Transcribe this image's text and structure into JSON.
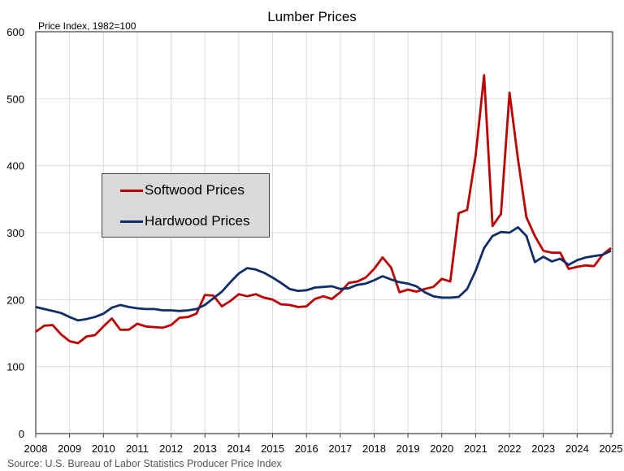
{
  "chart_data": {
    "type": "line",
    "title": "Lumber Prices",
    "ylabel": "Price Index, 1982=100",
    "xlabel": "",
    "source": "Source: U.S. Bureau of Labor Statistics Producer Price Index",
    "ylim": [
      0,
      600
    ],
    "xlim": [
      2008,
      2025
    ],
    "yticks": [
      0,
      100,
      200,
      300,
      400,
      500,
      600
    ],
    "xticks": [
      "2008",
      "2009",
      "2010",
      "2011",
      "2012",
      "2013",
      "2014",
      "2015",
      "2016",
      "2017",
      "2018",
      "2019",
      "2020",
      "2021",
      "2022",
      "2023",
      "2024",
      "2025"
    ],
    "grid": true,
    "legend_position": "upper-left-center",
    "x_start": 2008,
    "x_step": 0.25,
    "series": [
      {
        "name": "Softwood Prices",
        "color": "#c00000",
        "values": [
          152,
          161,
          162,
          148,
          138,
          135,
          145,
          147,
          160,
          172,
          155,
          155,
          164,
          160,
          159,
          158,
          162,
          173,
          174,
          179,
          207,
          206,
          190,
          198,
          208,
          205,
          208,
          203,
          200,
          193,
          192,
          189,
          190,
          201,
          205,
          201,
          211,
          225,
          227,
          233,
          246,
          263,
          248,
          211,
          215,
          212,
          216,
          219,
          231,
          227,
          329,
          334,
          415,
          535,
          310,
          328,
          509,
          410,
          323,
          295,
          273,
          270,
          270,
          246,
          249,
          251,
          250,
          267,
          277
        ]
      },
      {
        "name": "Hardwood Prices",
        "color": "#0f2d69",
        "values": [
          189,
          186,
          183,
          180,
          174,
          169,
          171,
          174,
          179,
          188,
          192,
          189,
          187,
          186,
          186,
          184,
          184,
          183,
          184,
          186,
          192,
          202,
          212,
          226,
          239,
          247,
          245,
          240,
          233,
          225,
          216,
          213,
          214,
          218,
          219,
          220,
          216,
          217,
          222,
          224,
          229,
          235,
          230,
          226,
          224,
          220,
          211,
          205,
          203,
          203,
          204,
          216,
          243,
          277,
          295,
          301,
          300,
          308,
          295,
          256,
          264,
          257,
          261,
          252,
          259,
          263,
          265,
          267,
          273
        ]
      }
    ]
  }
}
